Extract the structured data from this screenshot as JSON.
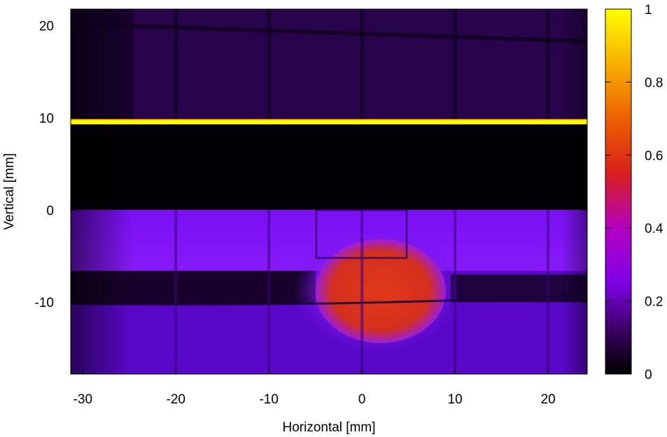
{
  "chart_data": {
    "type": "heatmap",
    "xlabel": "Horizontal [mm]",
    "ylabel": "Vertical [mm]",
    "xlim": [
      -31.3,
      24.2
    ],
    "ylim": [
      -17.8,
      21.8
    ],
    "x_ticks": [
      {
        "value": -30,
        "label": "-30"
      },
      {
        "value": -20,
        "label": "-20"
      },
      {
        "value": -10,
        "label": "-10"
      },
      {
        "value": 0,
        "label": "0"
      },
      {
        "value": 10,
        "label": "10"
      },
      {
        "value": 20,
        "label": "20"
      }
    ],
    "y_ticks": [
      {
        "value": -10,
        "label": "-10"
      },
      {
        "value": 0,
        "label": "0"
      },
      {
        "value": 10,
        "label": "10"
      },
      {
        "value": 20,
        "label": "20"
      }
    ],
    "colorbar": {
      "min": 0,
      "max": 1,
      "ticks": [
        {
          "value": 0,
          "label": "0"
        },
        {
          "value": 0.2,
          "label": "0.2"
        },
        {
          "value": 0.4,
          "label": "0.4"
        },
        {
          "value": 0.6,
          "label": "0.6"
        },
        {
          "value": 0.8,
          "label": "0.8"
        },
        {
          "value": 1,
          "label": "1"
        }
      ],
      "palette": [
        "#000000",
        "#3a0060",
        "#7e00e6",
        "#b400c0",
        "#d8201c",
        "#ec6000",
        "#f8b000",
        "#ffff00"
      ]
    },
    "regions": [
      {
        "name": "upper-field",
        "x": [
          -31.3,
          24.2
        ],
        "y": [
          9.3,
          21.8
        ],
        "value": 0.08
      },
      {
        "name": "bright-line",
        "x": [
          -31.3,
          24.2
        ],
        "y": [
          9.3,
          9.8
        ],
        "value": 1.0
      },
      {
        "name": "dark-band",
        "x": [
          -31.3,
          24.2
        ],
        "y": [
          0,
          9.3
        ],
        "value": 0.0
      },
      {
        "name": "lower-field",
        "x": [
          -31.3,
          24.2
        ],
        "y": [
          -17.8,
          0
        ],
        "value": 0.22
      },
      {
        "name": "central-spot",
        "x": [
          -5,
          9
        ],
        "y": [
          -14.5,
          -3.2
        ],
        "value": 0.55
      }
    ],
    "grid": false,
    "legend": "colorbar-right"
  }
}
